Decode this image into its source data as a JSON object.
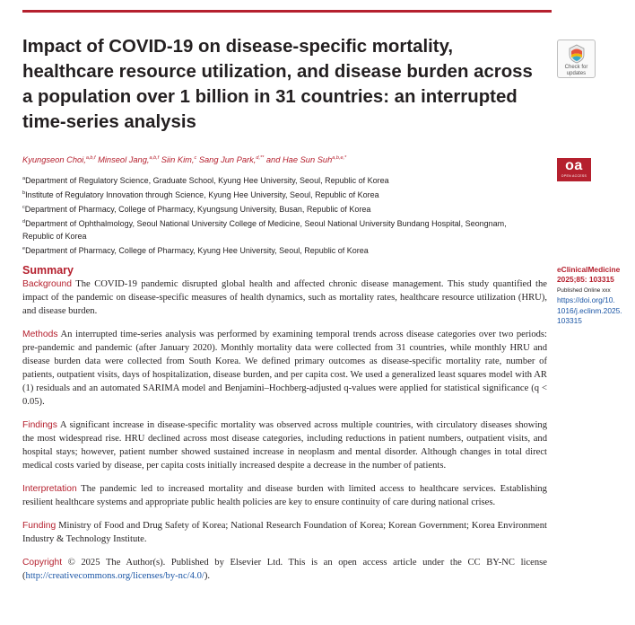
{
  "title": "Impact of COVID-19 on disease-specific mortality, healthcare resource utilization, and disease burden across a population over 1 billion in 31 countries: an interrupted time-series analysis",
  "check_updates": {
    "line1": "Check for",
    "line2": "updates"
  },
  "open_access": {
    "main": "oa",
    "sub": "OPEN ACCESS"
  },
  "authors": [
    {
      "name": "Kyungseon Choi,",
      "sup": "a,b,f"
    },
    {
      "name": "Minseol Jang,",
      "sup": "a,b,f"
    },
    {
      "name": "Siin Kim,",
      "sup": "c"
    },
    {
      "name": "Sang Jun Park,",
      "sup": "d,**"
    },
    {
      "name": "and Hae Sun Suh",
      "sup": "a,b,e,*"
    }
  ],
  "affiliations": [
    {
      "sup": "a",
      "text": "Department of Regulatory Science, Graduate School, Kyung Hee University, Seoul, Republic of Korea"
    },
    {
      "sup": "b",
      "text": "Institute of Regulatory Innovation through Science, Kyung Hee University, Seoul, Republic of Korea"
    },
    {
      "sup": "c",
      "text": "Department of Pharmacy, College of Pharmacy, Kyungsung University, Busan, Republic of Korea"
    },
    {
      "sup": "d",
      "text": "Department of Ophthalmology, Seoul National University College of Medicine, Seoul National University Bundang Hospital, Seongnam, Republic of Korea"
    },
    {
      "sup": "e",
      "text": "Department of Pharmacy, College of Pharmacy, Kyung Hee University, Seoul, Republic of Korea"
    }
  ],
  "summary_heading": "Summary",
  "abstract": {
    "background_label": "Background",
    "background": "The COVID-19 pandemic disrupted global health and affected chronic disease management. This study quantified the impact of the pandemic on disease-specific measures of health dynamics, such as mortality rates, healthcare resource utilization (HRU), and disease burden.",
    "methods_label": "Methods",
    "methods": "An interrupted time-series analysis was performed by examining temporal trends across disease categories over two periods: pre-pandemic and pandemic (after January 2020). Monthly mortality data were collected from 31 countries, while monthly HRU and disease burden data were collected from South Korea. We defined primary outcomes as disease-specific mortality rate, number of patients, outpatient visits, days of hospitalization, disease burden, and per capita cost. We used a generalized least squares model with AR (1) residuals and an automated SARIMA model and Benjamini–Hochberg-adjusted q-values were applied for statistical significance (q < 0.05).",
    "findings_label": "Findings",
    "findings": "A significant increase in disease-specific mortality was observed across multiple countries, with circulatory diseases showing the most widespread rise. HRU declined across most disease categories, including reductions in patient numbers, outpatient visits, and hospital stays; however, patient number showed sustained increase in neoplasm and mental disorder. Although changes in total direct medical costs varied by disease, per capita costs initially increased despite a decrease in the number of patients.",
    "interpretation_label": "Interpretation",
    "interpretation": "The pandemic led to increased mortality and disease burden with limited access to healthcare services. Establishing resilient healthcare systems and appropriate public health policies are key to ensure continuity of care during national crises.",
    "funding_label": "Funding",
    "funding": "Ministry of Food and Drug Safety of Korea; National Research Foundation of Korea; Korean Government; Korea Environment Industry & Technology Institute.",
    "copyright_label": "Copyright",
    "copyright_pre": "© 2025 The Author(s). Published by Elsevier Ltd. This is an open access article under the CC BY-NC license (",
    "copyright_link": "http://creativecommons.org/licenses/by-nc/4.0/",
    "copyright_post": ")."
  },
  "sidebar": {
    "journal": "eClinicalMedicine",
    "citation": "2025;85: 103315",
    "published": "Published Online xxx",
    "doi_lines": [
      "https://doi.org/10.",
      "1016/j.eclinm.2025.",
      "103315"
    ]
  },
  "colors": {
    "accent": "#b5202e",
    "link": "#1a55a5",
    "text": "#231f20"
  }
}
